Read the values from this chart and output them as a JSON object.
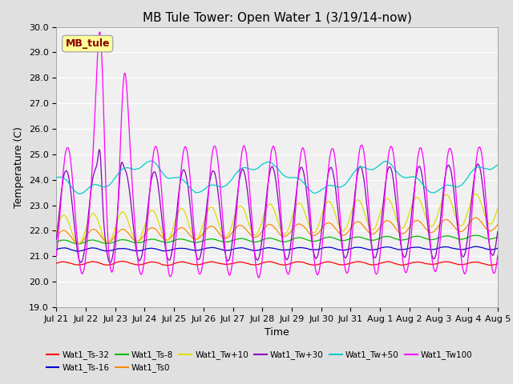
{
  "title": "MB Tule Tower: Open Water 1 (3/19/14-now)",
  "xlabel": "Time",
  "ylabel": "Temperature (C)",
  "ylim": [
    19.0,
    30.0
  ],
  "yticks": [
    19.0,
    20.0,
    21.0,
    22.0,
    23.0,
    24.0,
    25.0,
    26.0,
    27.0,
    28.0,
    29.0,
    30.0
  ],
  "x_labels": [
    "Jul 21",
    "Jul 22",
    "Jul 23",
    "Jul 24",
    "Jul 25",
    "Jul 26",
    "Jul 27",
    "Jul 28",
    "Jul 29",
    "Jul 30",
    "Jul 31",
    "Aug 1",
    "Aug 2",
    "Aug 3",
    "Aug 4",
    "Aug 5"
  ],
  "series": [
    {
      "name": "Wat1_Ts-32",
      "color": "#FF0000"
    },
    {
      "name": "Wat1_Ts-16",
      "color": "#0000CC"
    },
    {
      "name": "Wat1_Ts-8",
      "color": "#00BB00"
    },
    {
      "name": "Wat1_Ts0",
      "color": "#FF8800"
    },
    {
      "name": "Wat1_Tw+10",
      "color": "#DDDD00"
    },
    {
      "name": "Wat1_Tw+30",
      "color": "#8800BB"
    },
    {
      "name": "Wat1_Tw+50",
      "color": "#00CCCC"
    },
    {
      "name": "Wat1_Tw100",
      "color": "#FF00FF"
    }
  ],
  "legend_label": "MB_tule",
  "legend_text_color": "#880000",
  "legend_box_fill": "#FFFF99",
  "legend_box_edge": "#AAAAAA",
  "background_color": "#E0E0E0",
  "plot_background": "#F0F0F0",
  "grid_color": "#FFFFFF",
  "title_fontsize": 11,
  "tick_fontsize": 8,
  "axis_label_fontsize": 9,
  "legend_fontsize": 7.5
}
